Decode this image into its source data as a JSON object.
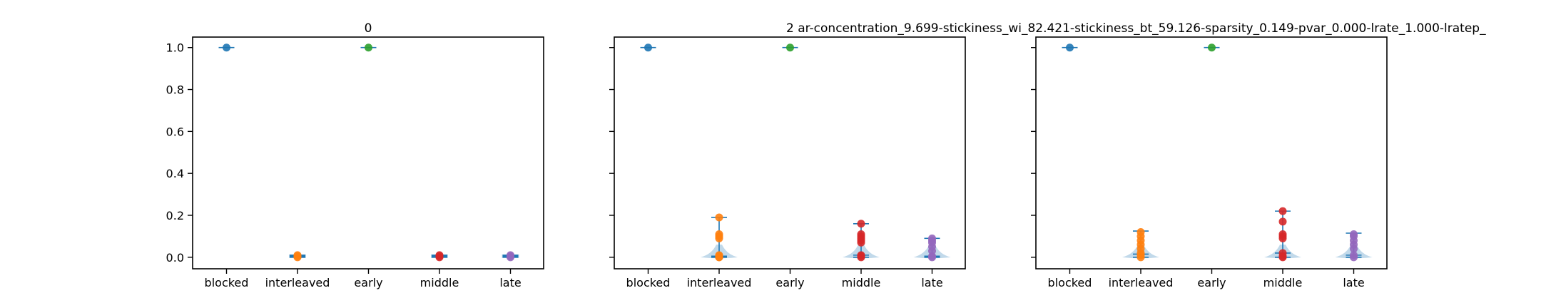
{
  "figure": {
    "title_main": "2    ar-concentration_9.699-stickiness_wi_82.421-stickiness_bt_59.126-sparsity_0.149-pvar_0.000-lrate_1.000-lratep_"
  },
  "colors": {
    "blocked": "#1f77b4",
    "interleaved": "#ff7f0e",
    "early": "#2ca02c",
    "middle": "#d62728",
    "late": "#9467bd",
    "violin_fill": "#1f77b4",
    "violin_line": "#1f77b4"
  },
  "chart_data": [
    {
      "type": "violin-scatter",
      "title": "0",
      "categories": [
        "blocked",
        "interleaved",
        "early",
        "middle",
        "late"
      ],
      "ylim": [
        -0.055,
        1.05
      ],
      "yticks": [
        "0.0",
        "0.2",
        "0.4",
        "0.6",
        "0.8",
        "1.0"
      ],
      "show_ytick_labels": true,
      "series": [
        {
          "category": "blocked",
          "values": [
            1.0
          ],
          "min": 1.0,
          "max": 1.0,
          "median": 1.0
        },
        {
          "category": "interleaved",
          "values": [
            0.0,
            0.005,
            0.01
          ],
          "min": 0.0,
          "max": 0.01,
          "median": 0.005
        },
        {
          "category": "early",
          "values": [
            1.0
          ],
          "min": 1.0,
          "max": 1.0,
          "median": 1.0
        },
        {
          "category": "middle",
          "values": [
            0.0,
            0.005,
            0.01
          ],
          "min": 0.0,
          "max": 0.01,
          "median": 0.005
        },
        {
          "category": "late",
          "values": [
            0.0,
            0.005,
            0.01
          ],
          "min": 0.0,
          "max": 0.01,
          "median": 0.005
        }
      ]
    },
    {
      "type": "violin-scatter",
      "title": "",
      "categories": [
        "blocked",
        "interleaved",
        "early",
        "middle",
        "late"
      ],
      "ylim": [
        -0.055,
        1.05
      ],
      "yticks": [
        "0.0",
        "0.2",
        "0.4",
        "0.6",
        "0.8",
        "1.0"
      ],
      "show_ytick_labels": false,
      "series": [
        {
          "category": "blocked",
          "values": [
            1.0
          ],
          "min": 1.0,
          "max": 1.0,
          "median": 1.0
        },
        {
          "category": "interleaved",
          "values": [
            0.0,
            0.0,
            0.005,
            0.01,
            0.09,
            0.1,
            0.11,
            0.19
          ],
          "min": 0.0,
          "max": 0.19,
          "median": 0.005
        },
        {
          "category": "early",
          "values": [
            1.0
          ],
          "min": 1.0,
          "max": 1.0,
          "median": 1.0
        },
        {
          "category": "middle",
          "values": [
            0.0,
            0.005,
            0.01,
            0.07,
            0.08,
            0.09,
            0.1,
            0.11,
            0.16
          ],
          "min": 0.0,
          "max": 0.16,
          "median": 0.01
        },
        {
          "category": "late",
          "values": [
            0.0,
            0.005,
            0.03,
            0.05,
            0.07,
            0.08,
            0.09
          ],
          "min": 0.0,
          "max": 0.09,
          "median": 0.005
        }
      ]
    },
    {
      "type": "violin-scatter",
      "title": "",
      "categories": [
        "blocked",
        "interleaved",
        "early",
        "middle",
        "late"
      ],
      "ylim": [
        -0.055,
        1.05
      ],
      "yticks": [
        "0.0",
        "0.2",
        "0.4",
        "0.6",
        "0.8",
        "1.0"
      ],
      "show_ytick_labels": false,
      "series": [
        {
          "category": "blocked",
          "values": [
            1.0
          ],
          "min": 1.0,
          "max": 1.0,
          "median": 1.0
        },
        {
          "category": "interleaved",
          "values": [
            0.0,
            0.01,
            0.02,
            0.04,
            0.06,
            0.08,
            0.1,
            0.12
          ],
          "min": 0.0,
          "max": 0.125,
          "median": 0.015
        },
        {
          "category": "early",
          "values": [
            1.0
          ],
          "min": 1.0,
          "max": 1.0,
          "median": 1.0
        },
        {
          "category": "middle",
          "values": [
            0.0,
            0.005,
            0.02,
            0.09,
            0.1,
            0.11,
            0.17,
            0.22
          ],
          "min": 0.0,
          "max": 0.22,
          "median": 0.02
        },
        {
          "category": "late",
          "values": [
            0.0,
            0.01,
            0.04,
            0.06,
            0.08,
            0.1,
            0.11
          ],
          "min": 0.0,
          "max": 0.115,
          "median": 0.01
        }
      ]
    }
  ]
}
